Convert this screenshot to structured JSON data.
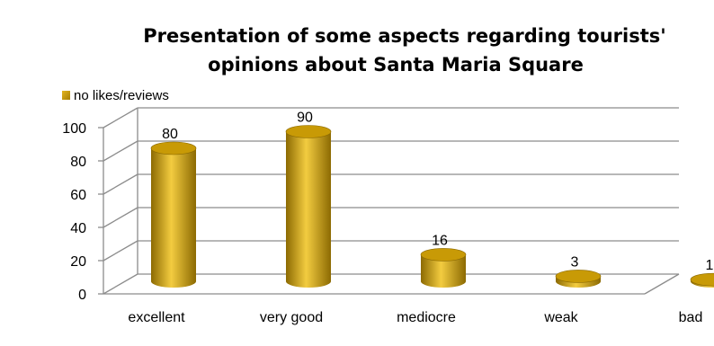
{
  "chart_data": {
    "type": "bar",
    "title_lines": [
      "Presentation of some aspects regarding tourists'",
      "opinions about Santa Maria Square"
    ],
    "categories": [
      "excellent",
      "very good",
      "mediocre",
      "weak",
      "bad"
    ],
    "series": [
      {
        "name": "no likes/reviews",
        "values": [
          80,
          90,
          16,
          3,
          1
        ]
      }
    ],
    "xlabel": "",
    "ylabel": "",
    "ylim": [
      0,
      100
    ],
    "yticks": [
      0,
      20,
      40,
      60,
      80,
      100
    ],
    "grid": true,
    "legend_position": "top-left",
    "data_labels": true,
    "style": "3d-cylinder",
    "colors": {
      "bar": "#c89a06",
      "bar_dark": "#8c6a02",
      "bar_light": "#f3cc40",
      "legend_swatch": "#c89a06",
      "grid": "#8c8c8c"
    }
  }
}
